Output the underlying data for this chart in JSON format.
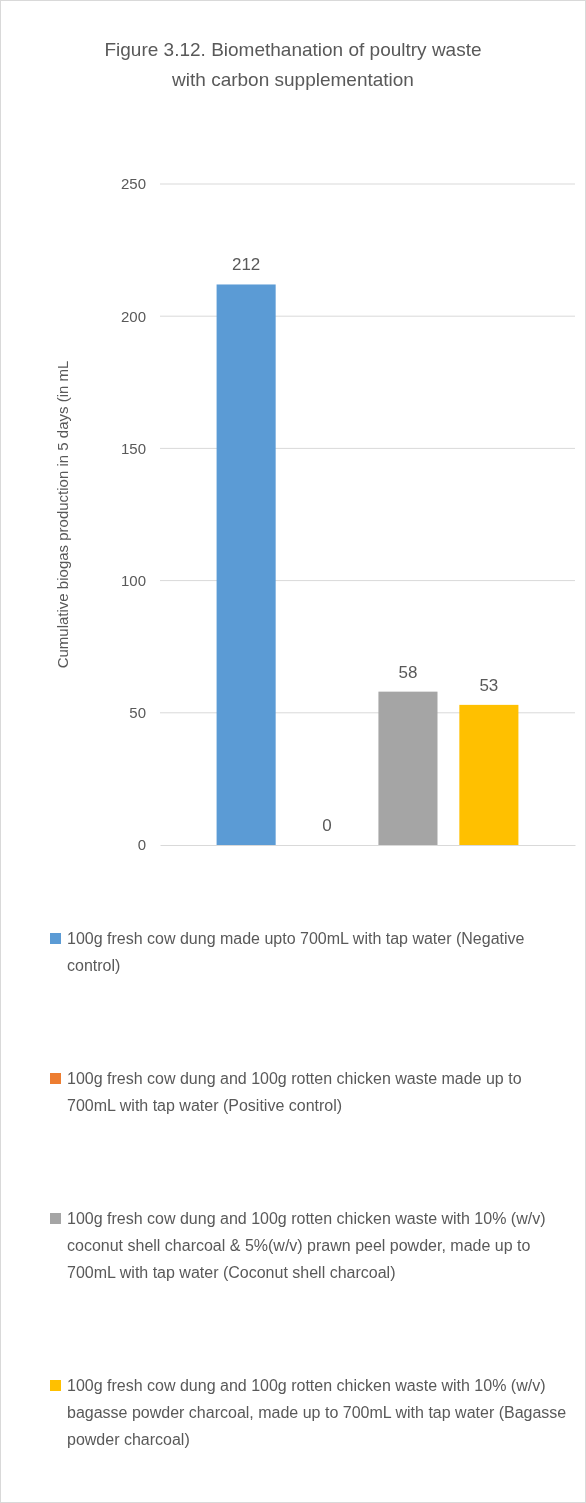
{
  "chart_data": {
    "type": "bar",
    "title": "Figure 3.12. Biomethanation of poultry waste with carbon supplementation",
    "ylabel": "Cumulative biogas production in 5 days (in mL",
    "categories": [
      null
    ],
    "series": [
      {
        "name": "100g fresh cow dung made upto 700mL with tap water (Negative control)",
        "color": "#5b9bd5",
        "values": [
          212
        ]
      },
      {
        "name": "100g fresh cow dung and 100g rotten chicken waste made up to 700mL with tap water (Positive control)",
        "color": "#ed7d31",
        "values": [
          0
        ]
      },
      {
        "name": "100g fresh cow dung and 100g rotten chicken waste with 10% (w/v) coconut shell charcoal & 5%(w/v) prawn peel powder, made up to 700mL with tap water (Coconut shell charcoal)",
        "color": "#a5a5a5",
        "values": [
          58
        ]
      },
      {
        "name": "100g fresh cow dung and 100g rotten chicken waste with 10% (w/v) bagasse powder charcoal, made up to 700mL with tap water (Bagasse powder charcoal)",
        "color": "#ffc000",
        "values": [
          53
        ]
      }
    ],
    "ylim": [
      0,
      250
    ],
    "yticks": [
      0,
      50,
      100,
      150,
      200,
      250
    ],
    "grid": "y",
    "data_labels": true,
    "legend": "bottom"
  }
}
